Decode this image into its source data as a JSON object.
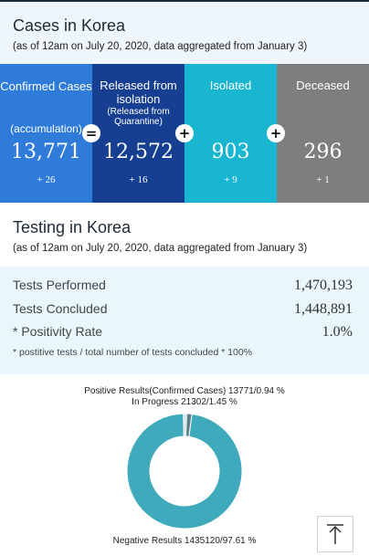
{
  "cases": {
    "title": "Cases in Korea",
    "subtitle": "(as of 12am on July 20, 2020, data aggregated from January 3)",
    "cards": [
      {
        "label": "Confirmed Cases",
        "sub": "(accumulation)",
        "value": "13,771",
        "delta": "+ 26",
        "color": "#2f7bd9"
      },
      {
        "label": "Released from isolation",
        "sub": "(Released from Quarantine)",
        "value": "12,572",
        "delta": "+ 16",
        "color": "#163f91"
      },
      {
        "label": "Isolated",
        "sub": "",
        "value": "903",
        "delta": "+ 9",
        "color": "#18b6d0"
      },
      {
        "label": "Deceased",
        "sub": "",
        "value": "296",
        "delta": "+ 1",
        "color": "#7e7e7e"
      }
    ],
    "operators": [
      "=",
      "+",
      "+"
    ]
  },
  "testing": {
    "title": "Testing in Korea",
    "subtitle": "(as of 12am on July 20, 2020, data aggregated from January 3)",
    "rows": [
      {
        "label": "Tests Performed",
        "value": "1,470,193"
      },
      {
        "label": "Tests Concluded",
        "value": "1,448,891"
      },
      {
        "label": "* Positivity Rate",
        "value": "1.0%"
      }
    ],
    "note": "* postitive tests / total number of tests concluded * 100%"
  },
  "chart_data": {
    "type": "pie",
    "donut": true,
    "slices": [
      {
        "label": "Positive Results(Confirmed Cases) 13771/0.94 %",
        "value": 13771,
        "percent": 0.94,
        "color": "#cfe3ea"
      },
      {
        "label": "In Progress 21302/1.45 %",
        "value": 21302,
        "percent": 1.45,
        "color": "#5e7f88"
      },
      {
        "label": "Negative Results 1435120/97.61 %",
        "value": 1435120,
        "percent": 97.61,
        "color": "#3faabb"
      }
    ]
  },
  "scroll_top": {
    "icon": "arrow-up-icon"
  }
}
